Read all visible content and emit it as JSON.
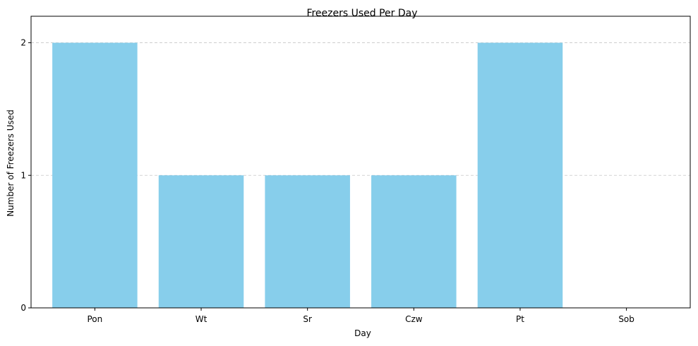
{
  "chart_data": {
    "type": "bar",
    "title": "Freezers Used Per Day",
    "xlabel": "Day",
    "ylabel": "Number of Freezers Used",
    "categories": [
      "Pon",
      "Wt",
      "Sr",
      "Czw",
      "Pt",
      "Sob"
    ],
    "values": [
      2,
      1,
      1,
      1,
      2,
      0
    ],
    "ylim": [
      0,
      2.2
    ],
    "yticks": [
      0,
      1,
      2
    ],
    "grid": "y-dashed",
    "colors": {
      "bar": "#87ceeb",
      "grid": "#c8c8c8"
    }
  }
}
